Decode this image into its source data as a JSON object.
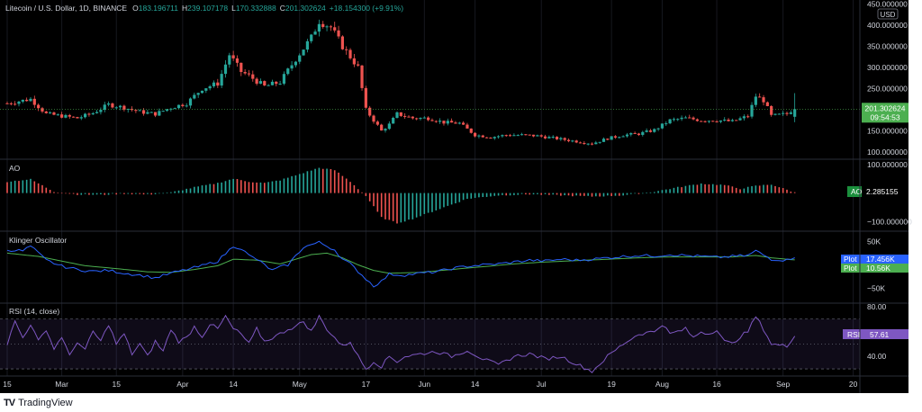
{
  "chart_data": [
    {
      "type": "candlestick",
      "title": "Litecoin / U.S. Dollar, 1D, BINANCE",
      "ohlc_legend": {
        "O": "183.196711",
        "H": "239.107178",
        "L": "170.332888",
        "C": "201.302624",
        "change": "+18.154300 (+9.91%)"
      },
      "currency_label": "USD",
      "y_ticks": [
        "450.000000",
        "400.000000",
        "350.000000",
        "300.000000",
        "250.000000",
        "150.000000",
        "100.000000"
      ],
      "ylim": [
        85,
        455
      ],
      "last_price": "201.302624",
      "countdown": "09:54:53",
      "close_anchors": [
        [
          0,
          215
        ],
        [
          6,
          225
        ],
        [
          10,
          190
        ],
        [
          14,
          185
        ],
        [
          18,
          180
        ],
        [
          22,
          192
        ],
        [
          26,
          212
        ],
        [
          30,
          205
        ],
        [
          34,
          195
        ],
        [
          38,
          190
        ],
        [
          42,
          205
        ],
        [
          46,
          215
        ],
        [
          50,
          250
        ],
        [
          54,
          262
        ],
        [
          57,
          330
        ],
        [
          60,
          290
        ],
        [
          62,
          280
        ],
        [
          66,
          255
        ],
        [
          70,
          265
        ],
        [
          74,
          320
        ],
        [
          78,
          370
        ],
        [
          80,
          410
        ],
        [
          83,
          395
        ],
        [
          86,
          350
        ],
        [
          90,
          300
        ],
        [
          92,
          200
        ],
        [
          96,
          150
        ],
        [
          98,
          165
        ],
        [
          100,
          190
        ],
        [
          104,
          180
        ],
        [
          108,
          180
        ],
        [
          112,
          170
        ],
        [
          116,
          168
        ],
        [
          120,
          140
        ],
        [
          124,
          135
        ],
        [
          128,
          140
        ],
        [
          132,
          140
        ],
        [
          136,
          138
        ],
        [
          140,
          133
        ],
        [
          146,
          125
        ],
        [
          150,
          120
        ],
        [
          154,
          132
        ],
        [
          158,
          140
        ],
        [
          162,
          143
        ],
        [
          166,
          152
        ],
        [
          170,
          175
        ],
        [
          174,
          180
        ],
        [
          178,
          175
        ],
        [
          182,
          175
        ],
        [
          186,
          172
        ],
        [
          190,
          185
        ],
        [
          192,
          232
        ],
        [
          194,
          222
        ],
        [
          196,
          185
        ],
        [
          200,
          190
        ],
        [
          202,
          205
        ]
      ]
    },
    {
      "type": "histogram",
      "title": "AO",
      "value_label": "2.285155",
      "y_ticks": [
        "100.000000",
        "−100.000000"
      ],
      "ylim": [
        -130,
        115
      ],
      "anchors": [
        [
          0,
          40
        ],
        [
          6,
          48
        ],
        [
          12,
          5
        ],
        [
          18,
          -5
        ],
        [
          24,
          -6
        ],
        [
          30,
          -2
        ],
        [
          36,
          -5
        ],
        [
          42,
          2
        ],
        [
          48,
          20
        ],
        [
          54,
          35
        ],
        [
          58,
          50
        ],
        [
          62,
          40
        ],
        [
          66,
          35
        ],
        [
          70,
          45
        ],
        [
          74,
          62
        ],
        [
          80,
          88
        ],
        [
          84,
          80
        ],
        [
          88,
          40
        ],
        [
          92,
          -10
        ],
        [
          96,
          -85
        ],
        [
          100,
          -105
        ],
        [
          104,
          -90
        ],
        [
          110,
          -60
        ],
        [
          118,
          -20
        ],
        [
          126,
          -8
        ],
        [
          134,
          -4
        ],
        [
          142,
          -8
        ],
        [
          150,
          -12
        ],
        [
          158,
          -8
        ],
        [
          166,
          5
        ],
        [
          172,
          20
        ],
        [
          178,
          33
        ],
        [
          184,
          28
        ],
        [
          188,
          15
        ],
        [
          192,
          25
        ],
        [
          196,
          30
        ],
        [
          202,
          2
        ]
      ]
    },
    {
      "type": "line",
      "title": "Klinger Oscillator",
      "y_ticks": [
        "50K",
        "−50K"
      ],
      "ylim": [
        -80,
        70
      ],
      "series": [
        {
          "name": "Plot",
          "value_label": "17.456K",
          "color": "#2962ff",
          "anchors": [
            [
              0,
              32
            ],
            [
              4,
              30
            ],
            [
              6,
              40
            ],
            [
              10,
              10
            ],
            [
              14,
              -3
            ],
            [
              18,
              -10
            ],
            [
              22,
              -14
            ],
            [
              26,
              -12
            ],
            [
              30,
              -18
            ],
            [
              34,
              -22
            ],
            [
              38,
              -28
            ],
            [
              42,
              -18
            ],
            [
              46,
              -10
            ],
            [
              50,
              -2
            ],
            [
              54,
              8
            ],
            [
              58,
              40
            ],
            [
              60,
              35
            ],
            [
              62,
              20
            ],
            [
              64,
              12
            ],
            [
              68,
              -12
            ],
            [
              70,
              -5
            ],
            [
              72,
              0
            ],
            [
              76,
              38
            ],
            [
              80,
              48
            ],
            [
              84,
              32
            ],
            [
              86,
              12
            ],
            [
              88,
              2
            ],
            [
              92,
              -30
            ],
            [
              94,
              -45
            ],
            [
              96,
              -35
            ],
            [
              98,
              -20
            ],
            [
              102,
              -22
            ],
            [
              106,
              -18
            ],
            [
              110,
              -15
            ],
            [
              114,
              -8
            ],
            [
              118,
              -3
            ],
            [
              122,
              0
            ],
            [
              126,
              2
            ],
            [
              130,
              6
            ],
            [
              134,
              10
            ],
            [
              138,
              8
            ],
            [
              142,
              12
            ],
            [
              146,
              10
            ],
            [
              150,
              12
            ],
            [
              154,
              15
            ],
            [
              158,
              18
            ],
            [
              162,
              20
            ],
            [
              166,
              19
            ],
            [
              170,
              22
            ],
            [
              174,
              20
            ],
            [
              178,
              18
            ],
            [
              182,
              16
            ],
            [
              186,
              18
            ],
            [
              190,
              20
            ],
            [
              192,
              30
            ],
            [
              196,
              12
            ],
            [
              200,
              10
            ],
            [
              202,
              17.5
            ]
          ]
        },
        {
          "name": "Plot",
          "value_label": "10.56K",
          "color": "#4caf50",
          "anchors": [
            [
              0,
              25
            ],
            [
              8,
              18
            ],
            [
              14,
              8
            ],
            [
              20,
              -2
            ],
            [
              28,
              -8
            ],
            [
              36,
              -15
            ],
            [
              42,
              -16
            ],
            [
              48,
              -10
            ],
            [
              54,
              -2
            ],
            [
              58,
              12
            ],
            [
              64,
              10
            ],
            [
              70,
              2
            ],
            [
              74,
              12
            ],
            [
              78,
              22
            ],
            [
              82,
              25
            ],
            [
              86,
              15
            ],
            [
              90,
              0
            ],
            [
              94,
              -12
            ],
            [
              98,
              -18
            ],
            [
              106,
              -16
            ],
            [
              114,
              -10
            ],
            [
              122,
              -4
            ],
            [
              130,
              2
            ],
            [
              138,
              6
            ],
            [
              146,
              9
            ],
            [
              154,
              12
            ],
            [
              162,
              15
            ],
            [
              170,
              17
            ],
            [
              178,
              17
            ],
            [
              186,
              17
            ],
            [
              192,
              20
            ],
            [
              196,
              15
            ],
            [
              202,
              10.5
            ]
          ]
        }
      ]
    },
    {
      "type": "line",
      "title": "RSI (14, close)",
      "value_label": "57.61",
      "y_ticks": [
        "80.00",
        "40.00"
      ],
      "ylim": [
        25,
        82
      ],
      "band": [
        30,
        70
      ],
      "midline": 50,
      "anchors": [
        [
          0,
          50
        ],
        [
          2,
          68
        ],
        [
          4,
          55
        ],
        [
          6,
          66
        ],
        [
          8,
          52
        ],
        [
          10,
          62
        ],
        [
          12,
          46
        ],
        [
          14,
          56
        ],
        [
          16,
          40
        ],
        [
          18,
          52
        ],
        [
          20,
          45
        ],
        [
          22,
          60
        ],
        [
          24,
          52
        ],
        [
          26,
          66
        ],
        [
          28,
          50
        ],
        [
          30,
          58
        ],
        [
          32,
          42
        ],
        [
          34,
          50
        ],
        [
          36,
          40
        ],
        [
          38,
          52
        ],
        [
          40,
          44
        ],
        [
          42,
          62
        ],
        [
          44,
          52
        ],
        [
          46,
          55
        ],
        [
          48,
          64
        ],
        [
          50,
          56
        ],
        [
          52,
          66
        ],
        [
          54,
          62
        ],
        [
          56,
          72
        ],
        [
          58,
          62
        ],
        [
          60,
          58
        ],
        [
          62,
          50
        ],
        [
          64,
          62
        ],
        [
          66,
          52
        ],
        [
          68,
          55
        ],
        [
          70,
          58
        ],
        [
          72,
          62
        ],
        [
          74,
          64
        ],
        [
          76,
          68
        ],
        [
          78,
          60
        ],
        [
          80,
          72
        ],
        [
          82,
          62
        ],
        [
          84,
          55
        ],
        [
          86,
          48
        ],
        [
          88,
          52
        ],
        [
          90,
          40
        ],
        [
          92,
          30
        ],
        [
          94,
          36
        ],
        [
          96,
          32
        ],
        [
          98,
          40
        ],
        [
          100,
          36
        ],
        [
          102,
          40
        ],
        [
          106,
          42
        ],
        [
          110,
          44
        ],
        [
          114,
          40
        ],
        [
          118,
          45
        ],
        [
          122,
          38
        ],
        [
          126,
          33
        ],
        [
          130,
          40
        ],
        [
          134,
          42
        ],
        [
          138,
          38
        ],
        [
          142,
          40
        ],
        [
          146,
          34
        ],
        [
          150,
          28
        ],
        [
          154,
          40
        ],
        [
          158,
          50
        ],
        [
          162,
          58
        ],
        [
          166,
          60
        ],
        [
          168,
          66
        ],
        [
          170,
          58
        ],
        [
          174,
          62
        ],
        [
          176,
          55
        ],
        [
          178,
          60
        ],
        [
          180,
          58
        ],
        [
          182,
          62
        ],
        [
          184,
          52
        ],
        [
          186,
          50
        ],
        [
          188,
          56
        ],
        [
          190,
          60
        ],
        [
          192,
          72
        ],
        [
          194,
          62
        ],
        [
          196,
          50
        ],
        [
          200,
          48
        ],
        [
          202,
          57.6
        ]
      ]
    }
  ],
  "x_axis": {
    "ticks": [
      {
        "label": "15",
        "day": 0
      },
      {
        "label": "Mar",
        "day": 14
      },
      {
        "label": "15",
        "day": 28
      },
      {
        "label": "Apr",
        "day": 45
      },
      {
        "label": "14",
        "day": 58
      },
      {
        "label": "May",
        "day": 75
      },
      {
        "label": "17",
        "day": 92
      },
      {
        "label": "Jun",
        "day": 107
      },
      {
        "label": "14",
        "day": 120
      },
      {
        "label": "Jul",
        "day": 137
      },
      {
        "label": "19",
        "day": 155
      },
      {
        "label": "Aug",
        "day": 168
      },
      {
        "label": "16",
        "day": 182
      },
      {
        "label": "Sep",
        "day": 199
      },
      {
        "label": "20",
        "day": 217
      }
    ]
  },
  "footer": {
    "logo_glyph": "TV",
    "brand": "TradingView"
  },
  "colors": {
    "up": "#26a69a",
    "down": "#ef5350",
    "ao_up": "#26a69a",
    "ao_down": "#ef5350",
    "rsi": "#7e57c2",
    "price_label": "#4caf50"
  }
}
